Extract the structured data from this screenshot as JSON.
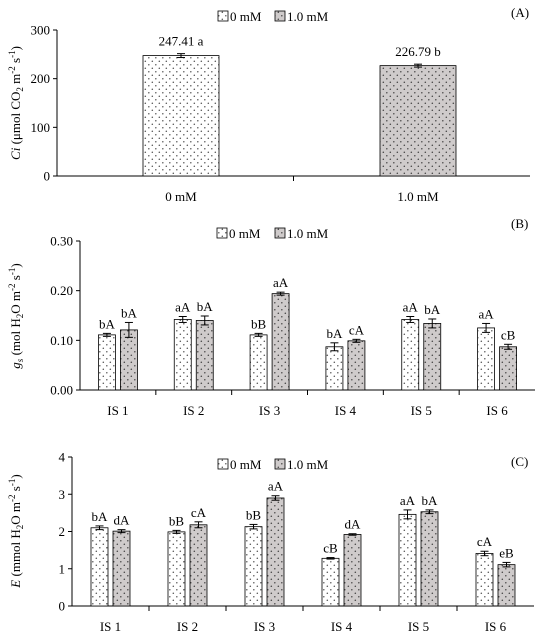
{
  "colors": {
    "series_0mM_fill": "#ffffff",
    "series_0mM_dots": "#555555",
    "series_1mM_fill": "#cfcbcb",
    "series_1mM_dots": "#444444",
    "axis": "#000000"
  },
  "chart_data": [
    {
      "type": "bar",
      "panel_label": "(A)",
      "ylabel": "Ci (μmol CO2 m-2 s-1)",
      "ylabel_parts": {
        "italic": "Ci",
        "pre": " (μmol CO",
        "sub": "2",
        "mid": " m",
        "sup1": "-2",
        "mid2": " s",
        "sup2": "-1",
        "post": ")"
      },
      "xlabel": "",
      "ylim": [
        0,
        300
      ],
      "yticks": [
        0,
        100,
        200,
        300
      ],
      "ytick_labels": [
        "0",
        "100",
        "200",
        "300"
      ],
      "categories": [
        "0 mM",
        "1.0 mM"
      ],
      "legend": {
        "position": "top-center",
        "entries": [
          "0 mM",
          "1.0 mM"
        ]
      },
      "grid": false,
      "series": [
        {
          "name": "0 mM",
          "values": [
            247.41,
            null
          ],
          "errors": [
            4,
            null
          ],
          "labels": [
            "247.41 a",
            null
          ]
        },
        {
          "name": "1.0 mM",
          "values": [
            null,
            226.79
          ],
          "errors": [
            null,
            3
          ],
          "labels": [
            null,
            "226.79 b"
          ]
        }
      ]
    },
    {
      "type": "bar",
      "panel_label": "(B)",
      "ylabel": "gs (mol H2O m-2 s-1)",
      "ylabel_parts": {
        "italic": "g",
        "italic_sub": "s",
        "pre": " (mol H",
        "sub": "2",
        "mid": "O m",
        "sup1": "-2",
        "mid2": " s",
        "sup2": "-1",
        "post": ")"
      },
      "xlabel": "",
      "ylim": [
        0,
        0.3
      ],
      "yticks": [
        0,
        0.1,
        0.2,
        0.3
      ],
      "ytick_labels": [
        "0.00",
        "0.10",
        "0.20",
        "0.30"
      ],
      "categories": [
        "IS 1",
        "IS 2",
        "IS 3",
        "IS 4",
        "IS 5",
        "IS 6"
      ],
      "legend": {
        "position": "top-center",
        "entries": [
          "0 mM",
          "1.0 mM"
        ]
      },
      "grid": false,
      "series": [
        {
          "name": "0 mM",
          "values": [
            0.111,
            0.142,
            0.111,
            0.087,
            0.142,
            0.125
          ],
          "errors": [
            0.003,
            0.006,
            0.003,
            0.008,
            0.006,
            0.009
          ],
          "labels": [
            "bA",
            "aA",
            "bB",
            "bA",
            "aA",
            "aA"
          ]
        },
        {
          "name": "1.0 mM",
          "values": [
            0.121,
            0.14,
            0.194,
            0.099,
            0.134,
            0.087
          ],
          "errors": [
            0.015,
            0.009,
            0.003,
            0.003,
            0.009,
            0.005
          ],
          "labels": [
            "bA",
            "bA",
            "aA",
            "cA",
            "bA",
            "cB"
          ]
        }
      ]
    },
    {
      "type": "bar",
      "panel_label": "(C)",
      "ylabel": "E (mmol H2O m-2 s-1)",
      "ylabel_parts": {
        "italic": "E",
        "pre": " (mmol H",
        "sub": "2",
        "mid": "O m",
        "sup1": "-2",
        "mid2": " s",
        "sup2": "-1",
        "post": ")"
      },
      "xlabel": "",
      "ylim": [
        0,
        4
      ],
      "yticks": [
        0,
        1,
        2,
        3,
        4
      ],
      "ytick_labels": [
        "0",
        "1",
        "2",
        "3",
        "4"
      ],
      "categories": [
        "IS 1",
        "IS 2",
        "IS 3",
        "IS 4",
        "IS 5",
        "IS 6"
      ],
      "legend": {
        "position": "top-center",
        "entries": [
          "0 mM",
          "1.0 mM"
        ]
      },
      "grid": false,
      "series": [
        {
          "name": "0 mM",
          "values": [
            2.1,
            1.99,
            2.13,
            1.28,
            2.46,
            1.41
          ],
          "errors": [
            0.05,
            0.04,
            0.06,
            0.02,
            0.12,
            0.06
          ],
          "labels": [
            "bA",
            "bB",
            "bB",
            "cB",
            "aA",
            "cA"
          ]
        },
        {
          "name": "1.0 mM",
          "values": [
            2.01,
            2.18,
            2.9,
            1.92,
            2.53,
            1.11
          ],
          "errors": [
            0.04,
            0.08,
            0.06,
            0.02,
            0.05,
            0.06
          ],
          "labels": [
            "dA",
            "cA",
            "aA",
            "dA",
            "bA",
            "eB"
          ]
        }
      ]
    }
  ]
}
